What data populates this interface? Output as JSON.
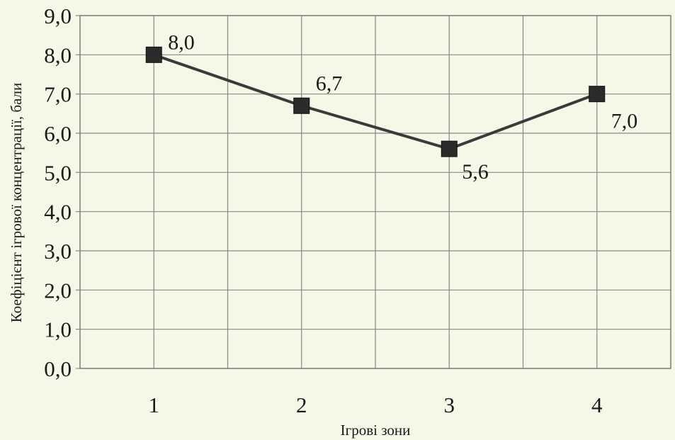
{
  "chart_data": {
    "type": "line",
    "xlabel": "Ігрові зони",
    "ylabel": "Коефіцієнт ігрової концентрації, бали",
    "categories": [
      "1",
      "2",
      "3",
      "4"
    ],
    "y_ticks": [
      "0,0",
      "1,0",
      "2,0",
      "3,0",
      "4,0",
      "5,0",
      "6,0",
      "7,0",
      "8,0",
      "9,0"
    ],
    "ylim": [
      0,
      9
    ],
    "grid": true,
    "series": [
      {
        "values": [
          8.0,
          6.7,
          5.6,
          7.0
        ],
        "labels": [
          "8,0",
          "6,7",
          "5,6",
          "7,0"
        ],
        "color": "#3a3a3a",
        "marker": "square"
      }
    ]
  }
}
